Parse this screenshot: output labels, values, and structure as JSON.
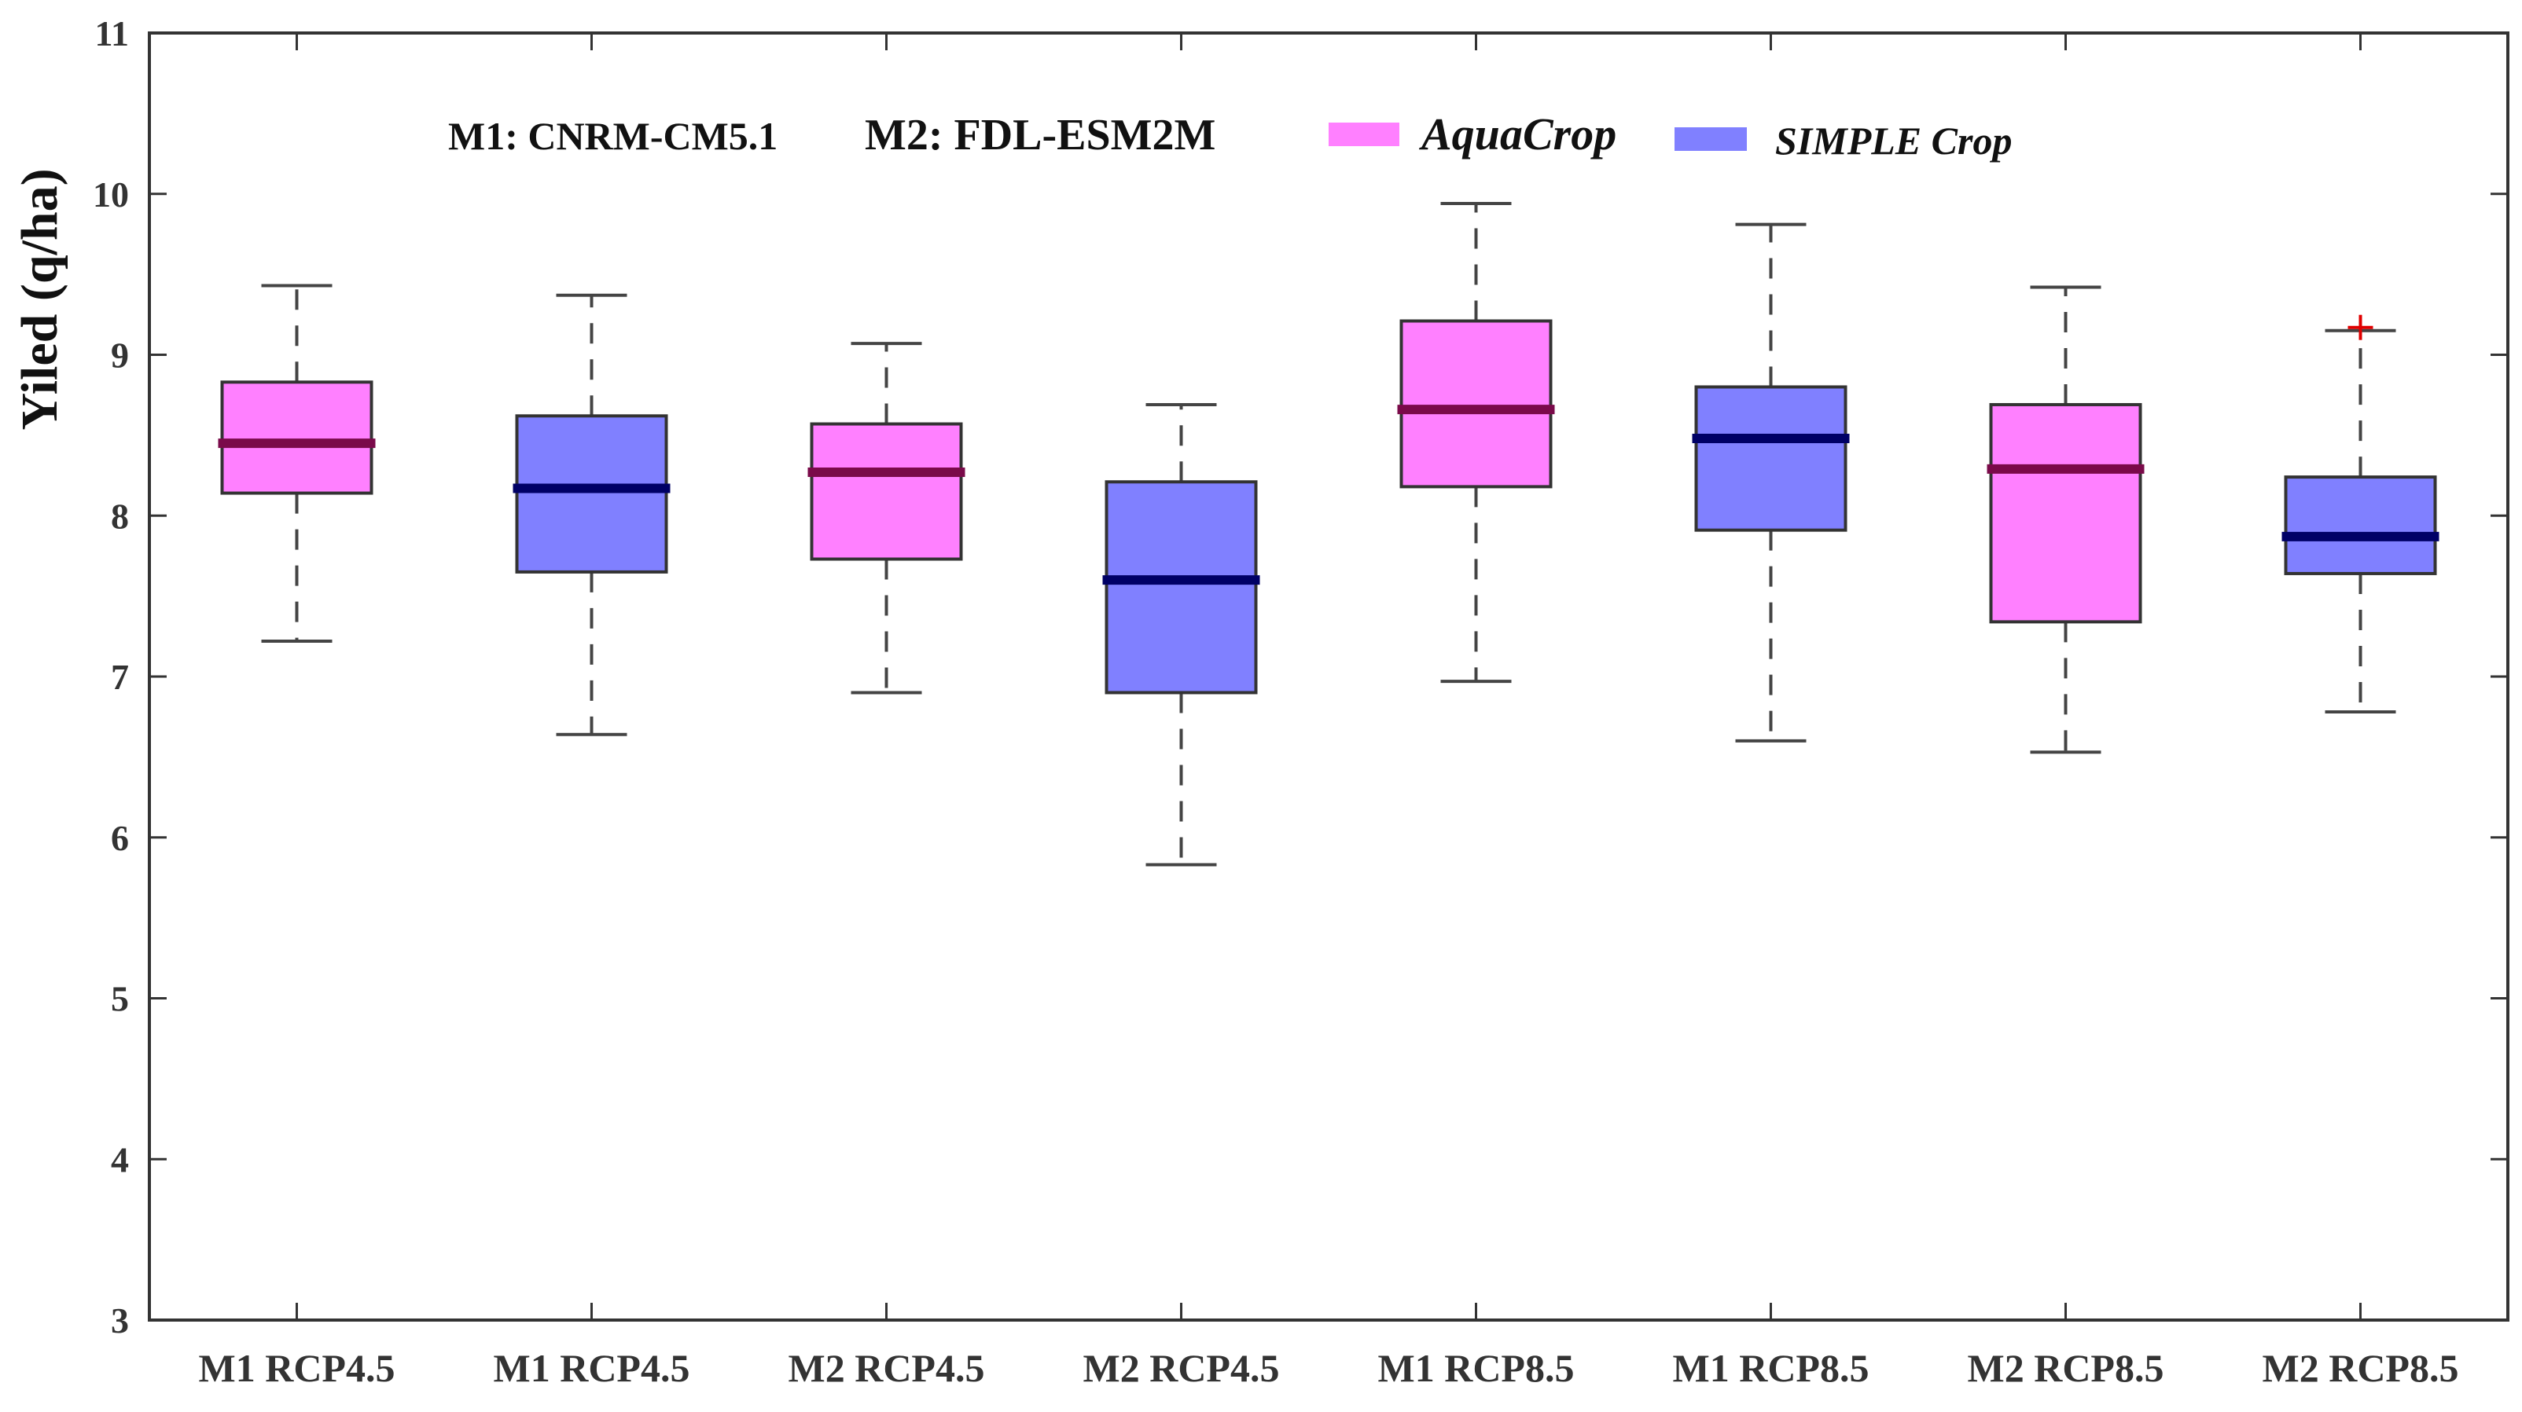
{
  "chart_data": {
    "type": "boxplot",
    "ylabel": "Yiled  (q/ha)",
    "xlabel": "",
    "ylim": [
      3,
      11
    ],
    "yticks": [
      3,
      4,
      5,
      6,
      7,
      8,
      9,
      10,
      11
    ],
    "grid": false,
    "legend_position": "top",
    "legend": {
      "model_note_1": "M1: CNRM-CM5.1",
      "model_note_2": "M2: FDL-ESM2M",
      "items": [
        {
          "name": "AquaCrop",
          "color": "#ff80ff"
        },
        {
          "name": "SIMPLE Crop",
          "color": "#8080ff"
        }
      ]
    },
    "categories": [
      "M1 RCP4.5",
      "M1 RCP4.5",
      "M2 RCP4.5",
      "M2 RCP4.5",
      "M1 RCP8.5",
      "M1 RCP8.5",
      "M2 RCP8.5",
      "M2 RCP8.5"
    ],
    "boxes": [
      {
        "category": "M1 RCP4.5",
        "model": "AquaCrop",
        "whisker_low": 7.22,
        "q1": 8.14,
        "median": 8.45,
        "q3": 8.83,
        "whisker_high": 9.43,
        "outliers": []
      },
      {
        "category": "M1 RCP4.5",
        "model": "SIMPLE Crop",
        "whisker_low": 6.64,
        "q1": 7.65,
        "median": 8.17,
        "q3": 8.62,
        "whisker_high": 9.37,
        "outliers": []
      },
      {
        "category": "M2 RCP4.5",
        "model": "AquaCrop",
        "whisker_low": 6.9,
        "q1": 7.73,
        "median": 8.27,
        "q3": 8.57,
        "whisker_high": 9.07,
        "outliers": []
      },
      {
        "category": "M2 RCP4.5",
        "model": "SIMPLE Crop",
        "whisker_low": 5.83,
        "q1": 6.9,
        "median": 7.6,
        "q3": 8.21,
        "whisker_high": 8.69,
        "outliers": []
      },
      {
        "category": "M1 RCP8.5",
        "model": "AquaCrop",
        "whisker_low": 6.97,
        "q1": 8.18,
        "median": 8.66,
        "q3": 9.21,
        "whisker_high": 9.94,
        "outliers": []
      },
      {
        "category": "M1 RCP8.5",
        "model": "SIMPLE Crop",
        "whisker_low": 6.6,
        "q1": 7.91,
        "median": 8.48,
        "q3": 8.8,
        "whisker_high": 9.81,
        "outliers": []
      },
      {
        "category": "M2 RCP8.5",
        "model": "AquaCrop",
        "whisker_low": 6.53,
        "q1": 7.34,
        "median": 8.29,
        "q3": 8.69,
        "whisker_high": 9.42,
        "outliers": []
      },
      {
        "category": "M2 RCP8.5",
        "model": "SIMPLE Crop",
        "whisker_low": 6.78,
        "q1": 7.64,
        "median": 7.87,
        "q3": 8.24,
        "whisker_high": 9.15,
        "outliers": [
          9.17
        ]
      }
    ],
    "colors": {
      "AquaCrop": "#ff80ff",
      "AquaCrop_median": "#7a0a4a",
      "SIMPLE Crop": "#8080ff",
      "SIMPLE Crop_median": "#000066",
      "outlier": "#e00000",
      "axis": "#333333",
      "whisker": "#444444"
    }
  }
}
